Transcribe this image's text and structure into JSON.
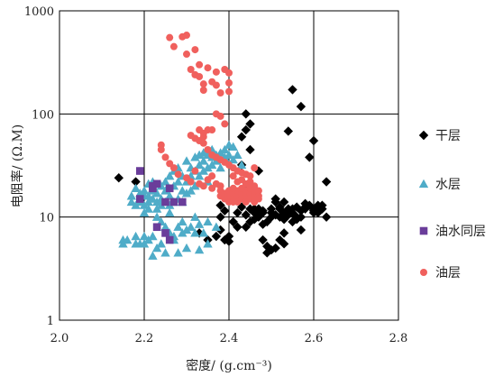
{
  "chart_data": {
    "type": "scatter",
    "title": "",
    "xlabel": "密度/ (g.cm⁻³)",
    "ylabel": "电阻率/ (Ω.M)",
    "xlim": [
      2.0,
      2.8
    ],
    "ylim": [
      1,
      1000
    ],
    "y_scale": "log",
    "grid": true,
    "x_ticks": [
      "2.0",
      "2.2",
      "2.4",
      "2.6",
      "2.8"
    ],
    "y_ticks": [
      "1",
      "10",
      "100",
      "1000"
    ],
    "legend_position": "right",
    "series": [
      {
        "name": "干层",
        "marker": "diamond",
        "color": "#000000",
        "points": [
          [
            2.14,
            24
          ],
          [
            2.18,
            22
          ],
          [
            2.33,
            7
          ],
          [
            2.35,
            6
          ],
          [
            2.37,
            6.5
          ],
          [
            2.38,
            7.5
          ],
          [
            2.38,
            10
          ],
          [
            2.38,
            13
          ],
          [
            2.39,
            11.5
          ],
          [
            2.39,
            6
          ],
          [
            2.4,
            5.8
          ],
          [
            2.4,
            6.5
          ],
          [
            2.41,
            9
          ],
          [
            2.42,
            8
          ],
          [
            2.43,
            60
          ],
          [
            2.43,
            32
          ],
          [
            2.44,
            100
          ],
          [
            2.44,
            70
          ],
          [
            2.44,
            20
          ],
          [
            2.44,
            15
          ],
          [
            2.44,
            10.5
          ],
          [
            2.45,
            80
          ],
          [
            2.45,
            45
          ],
          [
            2.45,
            12
          ],
          [
            2.46,
            9.5
          ],
          [
            2.46,
            11
          ],
          [
            2.47,
            10
          ],
          [
            2.47,
            12
          ],
          [
            2.48,
            8.5
          ],
          [
            2.48,
            11.5
          ],
          [
            2.49,
            9
          ],
          [
            2.49,
            4.5
          ],
          [
            2.5,
            4.8
          ],
          [
            2.5,
            11
          ],
          [
            2.5,
            12
          ],
          [
            2.51,
            10.5
          ],
          [
            2.51,
            5
          ],
          [
            2.51,
            14
          ],
          [
            2.52,
            6
          ],
          [
            2.52,
            10
          ],
          [
            2.52,
            12
          ],
          [
            2.52,
            12.5
          ],
          [
            2.53,
            9.5
          ],
          [
            2.53,
            11
          ],
          [
            2.53,
            5.5
          ],
          [
            2.53,
            14
          ],
          [
            2.54,
            68
          ],
          [
            2.54,
            10.5
          ],
          [
            2.54,
            12
          ],
          [
            2.55,
            12
          ],
          [
            2.55,
            9
          ],
          [
            2.55,
            11
          ],
          [
            2.55,
            172
          ],
          [
            2.56,
            10
          ],
          [
            2.56,
            12.5
          ],
          [
            2.57,
            118
          ],
          [
            2.57,
            10
          ],
          [
            2.57,
            7.5
          ],
          [
            2.57,
            11.5
          ],
          [
            2.58,
            12
          ],
          [
            2.58,
            12.5
          ],
          [
            2.59,
            13
          ],
          [
            2.59,
            38
          ],
          [
            2.6,
            12
          ],
          [
            2.6,
            11.5
          ],
          [
            2.6,
            55
          ],
          [
            2.61,
            12
          ],
          [
            2.61,
            11
          ],
          [
            2.61,
            13
          ],
          [
            2.62,
            13
          ],
          [
            2.62,
            12
          ],
          [
            2.63,
            10
          ],
          [
            2.63,
            22
          ],
          [
            2.48,
            6
          ],
          [
            2.49,
            5.2
          ],
          [
            2.51,
            15
          ],
          [
            2.46,
            12
          ],
          [
            2.47,
            28
          ],
          [
            2.48,
            11
          ],
          [
            2.43,
            12.5
          ],
          [
            2.42,
            11
          ],
          [
            2.56,
            9.5
          ],
          [
            2.58,
            13.5
          ],
          [
            2.6,
            11
          ],
          [
            2.61,
            12.5
          ],
          [
            2.53,
            7
          ],
          [
            2.5,
            10
          ],
          [
            2.45,
            9
          ],
          [
            2.44,
            8
          ]
        ]
      },
      {
        "name": "水层",
        "marker": "triangle",
        "color": "#4FACC8",
        "points": [
          [
            2.15,
            6
          ],
          [
            2.15,
            5.5
          ],
          [
            2.16,
            6
          ],
          [
            2.17,
            14
          ],
          [
            2.17,
            16
          ],
          [
            2.18,
            19
          ],
          [
            2.18,
            6.5
          ],
          [
            2.18,
            5.5
          ],
          [
            2.19,
            15
          ],
          [
            2.19,
            17
          ],
          [
            2.19,
            14
          ],
          [
            2.19,
            5.5
          ],
          [
            2.2,
            16
          ],
          [
            2.2,
            13
          ],
          [
            2.2,
            18
          ],
          [
            2.2,
            6.5
          ],
          [
            2.2,
            5.5
          ],
          [
            2.21,
            12
          ],
          [
            2.21,
            14
          ],
          [
            2.21,
            16
          ],
          [
            2.21,
            6
          ],
          [
            2.22,
            15
          ],
          [
            2.22,
            18
          ],
          [
            2.22,
            22
          ],
          [
            2.22,
            6.5
          ],
          [
            2.23,
            14
          ],
          [
            2.23,
            17
          ],
          [
            2.23,
            12
          ],
          [
            2.23,
            5
          ],
          [
            2.24,
            20
          ],
          [
            2.24,
            15
          ],
          [
            2.24,
            13
          ],
          [
            2.24,
            5.5
          ],
          [
            2.25,
            22
          ],
          [
            2.25,
            18
          ],
          [
            2.25,
            14
          ],
          [
            2.25,
            8
          ],
          [
            2.26,
            25
          ],
          [
            2.26,
            16
          ],
          [
            2.26,
            13
          ],
          [
            2.26,
            7
          ],
          [
            2.27,
            28
          ],
          [
            2.27,
            20
          ],
          [
            2.27,
            14
          ],
          [
            2.27,
            6.5
          ],
          [
            2.28,
            30
          ],
          [
            2.28,
            22
          ],
          [
            2.28,
            15
          ],
          [
            2.28,
            8
          ],
          [
            2.28,
            4.5
          ],
          [
            2.29,
            25
          ],
          [
            2.29,
            18
          ],
          [
            2.29,
            14
          ],
          [
            2.29,
            7
          ],
          [
            2.3,
            35
          ],
          [
            2.3,
            22
          ],
          [
            2.3,
            17
          ],
          [
            2.3,
            7.5
          ],
          [
            2.31,
            30
          ],
          [
            2.31,
            25
          ],
          [
            2.31,
            18
          ],
          [
            2.31,
            8
          ],
          [
            2.32,
            38
          ],
          [
            2.32,
            28
          ],
          [
            2.32,
            20
          ],
          [
            2.32,
            7
          ],
          [
            2.33,
            40
          ],
          [
            2.33,
            32
          ],
          [
            2.33,
            25
          ],
          [
            2.33,
            8.5
          ],
          [
            2.34,
            42
          ],
          [
            2.34,
            35
          ],
          [
            2.34,
            28
          ],
          [
            2.34,
            7
          ],
          [
            2.35,
            40
          ],
          [
            2.35,
            30
          ],
          [
            2.35,
            22
          ],
          [
            2.35,
            5.5
          ],
          [
            2.36,
            38
          ],
          [
            2.36,
            45
          ],
          [
            2.36,
            32
          ],
          [
            2.37,
            40
          ],
          [
            2.37,
            35
          ],
          [
            2.37,
            8
          ],
          [
            2.38,
            42
          ],
          [
            2.38,
            30
          ],
          [
            2.39,
            45
          ],
          [
            2.39,
            38
          ],
          [
            2.4,
            50
          ],
          [
            2.4,
            40
          ],
          [
            2.41,
            48
          ],
          [
            2.41,
            36
          ],
          [
            2.42,
            40
          ],
          [
            2.43,
            32
          ],
          [
            2.21,
            21
          ],
          [
            2.23,
            10
          ],
          [
            2.26,
            11
          ],
          [
            2.29,
            9
          ],
          [
            2.32,
            10
          ],
          [
            2.18,
            13
          ],
          [
            2.2,
            11
          ],
          [
            2.24,
            9
          ],
          [
            2.27,
            6
          ],
          [
            2.3,
            5
          ],
          [
            2.35,
            9
          ],
          [
            2.25,
            4.5
          ],
          [
            2.22,
            4.2
          ],
          [
            2.33,
            4.8
          ]
        ]
      },
      {
        "name": "油水同层",
        "marker": "square",
        "color": "#6A3D9A",
        "points": [
          [
            2.19,
            28
          ],
          [
            2.19,
            15
          ],
          [
            2.22,
            19
          ],
          [
            2.22,
            20
          ],
          [
            2.23,
            21
          ],
          [
            2.25,
            14
          ],
          [
            2.26,
            19
          ],
          [
            2.23,
            8
          ],
          [
            2.25,
            7
          ],
          [
            2.26,
            6
          ],
          [
            2.27,
            14
          ],
          [
            2.29,
            14
          ]
        ]
      },
      {
        "name": "油层",
        "marker": "circle",
        "color": "#F0605D",
        "points": [
          [
            2.26,
            550
          ],
          [
            2.27,
            450
          ],
          [
            2.29,
            560
          ],
          [
            2.3,
            580
          ],
          [
            2.3,
            380
          ],
          [
            2.31,
            270
          ],
          [
            2.32,
            420
          ],
          [
            2.32,
            240
          ],
          [
            2.33,
            300
          ],
          [
            2.33,
            230
          ],
          [
            2.34,
            195
          ],
          [
            2.34,
            170
          ],
          [
            2.35,
            280
          ],
          [
            2.36,
            205
          ],
          [
            2.37,
            255
          ],
          [
            2.37,
            190
          ],
          [
            2.38,
            160
          ],
          [
            2.39,
            270
          ],
          [
            2.4,
            250
          ],
          [
            2.4,
            200
          ],
          [
            2.4,
            165
          ],
          [
            2.37,
            100
          ],
          [
            2.38,
            95
          ],
          [
            2.39,
            80
          ],
          [
            2.36,
            70
          ],
          [
            2.35,
            70
          ],
          [
            2.34,
            65
          ],
          [
            2.33,
            55
          ],
          [
            2.34,
            52
          ],
          [
            2.35,
            45
          ],
          [
            2.36,
            40
          ],
          [
            2.37,
            38
          ],
          [
            2.38,
            36
          ],
          [
            2.39,
            34
          ],
          [
            2.4,
            32
          ],
          [
            2.41,
            30
          ],
          [
            2.42,
            28
          ],
          [
            2.43,
            27
          ],
          [
            2.44,
            26
          ],
          [
            2.45,
            25
          ],
          [
            2.46,
            30
          ],
          [
            2.34,
            60
          ],
          [
            2.33,
            70
          ],
          [
            2.32,
            58
          ],
          [
            2.31,
            62
          ],
          [
            2.24,
            50
          ],
          [
            2.24,
            45
          ],
          [
            2.25,
            38
          ],
          [
            2.26,
            33
          ],
          [
            2.27,
            30
          ],
          [
            2.28,
            26
          ],
          [
            2.3,
            24
          ],
          [
            2.31,
            22
          ],
          [
            2.33,
            21
          ],
          [
            2.35,
            23
          ],
          [
            2.36,
            25
          ],
          [
            2.38,
            20
          ],
          [
            2.38,
            18
          ],
          [
            2.39,
            17
          ],
          [
            2.4,
            16
          ],
          [
            2.4,
            18
          ],
          [
            2.41,
            17
          ],
          [
            2.41,
            15
          ],
          [
            2.42,
            16
          ],
          [
            2.42,
            18
          ],
          [
            2.42,
            14
          ],
          [
            2.43,
            17
          ],
          [
            2.43,
            15
          ],
          [
            2.44,
            16
          ],
          [
            2.44,
            18
          ],
          [
            2.44,
            14
          ],
          [
            2.45,
            17
          ],
          [
            2.45,
            15
          ],
          [
            2.46,
            16
          ],
          [
            2.46,
            18
          ],
          [
            2.46,
            14
          ],
          [
            2.47,
            16
          ],
          [
            2.47,
            15
          ],
          [
            2.41,
            19
          ],
          [
            2.43,
            19
          ],
          [
            2.45,
            19
          ],
          [
            2.39,
            15
          ],
          [
            2.4,
            14
          ],
          [
            2.38,
            16
          ],
          [
            2.37,
            21
          ],
          [
            2.36,
            19
          ],
          [
            2.34,
            20
          ],
          [
            2.32,
            28
          ],
          [
            2.41,
            25
          ],
          [
            2.42,
            22
          ],
          [
            2.43,
            23
          ],
          [
            2.44,
            21
          ],
          [
            2.45,
            22
          ],
          [
            2.46,
            20
          ],
          [
            2.47,
            18
          ],
          [
            2.41,
            14
          ]
        ]
      }
    ]
  }
}
